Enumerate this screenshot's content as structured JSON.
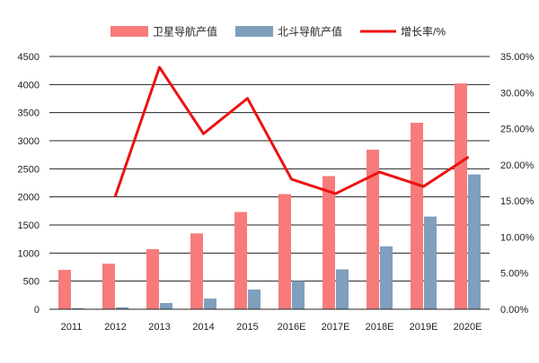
{
  "chart_data": {
    "type": "bar",
    "categories": [
      "2011",
      "2012",
      "2013",
      "2014",
      "2015",
      "2016E",
      "2017E",
      "2018E",
      "2019E",
      "2020E"
    ],
    "series": [
      {
        "name": "卫星导航产值",
        "type": "bar",
        "axis": "left",
        "color": "#f77b7b",
        "values": [
          700,
          810,
          1070,
          1350,
          1730,
          2050,
          2370,
          2840,
          3320,
          4020
        ]
      },
      {
        "name": "北斗导航产值",
        "type": "bar",
        "axis": "left",
        "color": "#7f9fbd",
        "values": [
          20,
          35,
          110,
          190,
          350,
          500,
          710,
          1120,
          1650,
          2400
        ]
      },
      {
        "name": "增长率/%",
        "type": "line",
        "axis": "right",
        "color": "#ee1111",
        "values": [
          null,
          15.7,
          33.5,
          24.3,
          29.2,
          18.0,
          16.0,
          19.0,
          17.0,
          21.0
        ]
      }
    ],
    "left_axis": {
      "ylim": [
        0,
        4500
      ],
      "ticks": [
        "0",
        "500",
        "1000",
        "1500",
        "2000",
        "2500",
        "3000",
        "3500",
        "4000",
        "4500"
      ]
    },
    "right_axis": {
      "ylim": [
        0,
        35
      ],
      "ticks": [
        "0.00%",
        "5.00%",
        "10.00%",
        "15.00%",
        "20.00%",
        "25.00%",
        "30.00%",
        "35.00%"
      ]
    },
    "legend": "top",
    "grid": true
  }
}
